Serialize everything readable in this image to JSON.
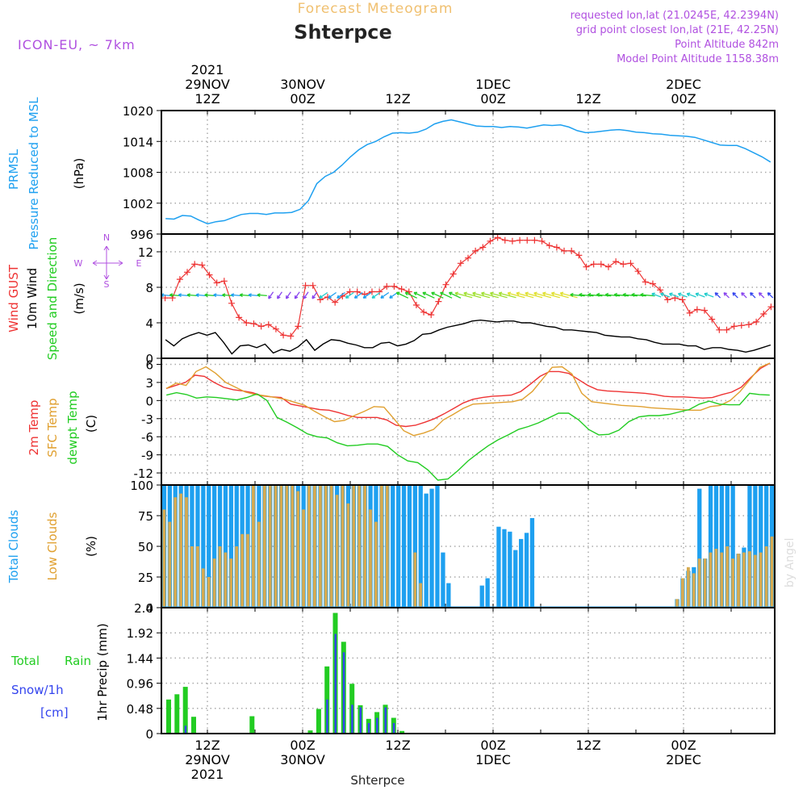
{
  "header": {
    "subtitle": "Forecast Meteogram",
    "title": "Shterpce",
    "model": "ICON-EU, ~ 7km",
    "requested": "requested lon,lat (21.0245E, 42.2394N)",
    "gridpoint": "grid point closest lon,lat (21E, 42.25N)",
    "point_alt": "Point Altitude 842m",
    "model_alt": "Model Point Altitude 1158.38m",
    "footer_name": "Shterpce",
    "credit": "by Angel"
  },
  "time_axis": {
    "top_labels": [
      {
        "hour": 12,
        "lines": [
          "2021",
          "29NOV",
          "12Z"
        ]
      },
      {
        "hour": 24,
        "lines": [
          "30NOV",
          "00Z"
        ]
      },
      {
        "hour": 36,
        "lines": [
          "12Z"
        ]
      },
      {
        "hour": 48,
        "lines": [
          "1DEC",
          "00Z"
        ]
      },
      {
        "hour": 60,
        "lines": [
          "12Z"
        ]
      },
      {
        "hour": 72,
        "lines": [
          "2DEC",
          "00Z"
        ]
      }
    ],
    "bottom_labels": [
      {
        "hour": 12,
        "lines": [
          "12Z",
          "29NOV",
          "2021"
        ]
      },
      {
        "hour": 24,
        "lines": [
          "00Z",
          "30NOV"
        ]
      },
      {
        "hour": 36,
        "lines": [
          "12Z"
        ]
      },
      {
        "hour": 48,
        "lines": [
          "00Z",
          "1DEC"
        ]
      },
      {
        "hour": 60,
        "lines": [
          "12Z"
        ]
      },
      {
        "hour": 72,
        "lines": [
          "00Z",
          "2DEC"
        ]
      }
    ]
  },
  "labels": {
    "p1": [
      "PRMSL",
      "Pressure Reduced to MSL",
      "(hPa)"
    ],
    "p2": [
      "Wind GUST",
      "10m Wind",
      "Speed and Direction",
      "(m/s)"
    ],
    "compass": {
      "n": "N",
      "s": "S",
      "w": "W",
      "e": "E"
    },
    "p3": [
      "2m Temp",
      "SFC Temp",
      "dewpt Temp",
      "(C)"
    ],
    "p4": [
      "Total Clouds",
      "Low Clouds",
      "(%)"
    ],
    "p5": [
      "Total",
      "Rain",
      "Snow/1h",
      "[cm]",
      "1hr Precip (mm)"
    ]
  },
  "colors": {
    "pressure": "#1ea0f0",
    "gust": "#ee3333",
    "wind": "#000000",
    "temp2m": "#ee3333",
    "sfc": "#e0a030",
    "dew": "#22cc22",
    "totalcloud": "#1ea0f0",
    "lowcloud": "#d6aa50",
    "rain": "#22cc22",
    "snow": "#3344ee",
    "title_orange": "#f0c070",
    "purple": "#b050e0",
    "grid": "#aaaaaa"
  },
  "chart_data": [
    {
      "type": "line",
      "name": "PRMSL",
      "ylabel": "(hPa)",
      "ylim": [
        996,
        1020
      ],
      "yticks": [
        1020,
        1014,
        1008,
        1002,
        996
      ],
      "series": [
        {
          "name": "PRMSL",
          "values": [
            999.0,
            998.9,
            999.6,
            999.5,
            998.7,
            998.0,
            998.4,
            998.6,
            999.2,
            999.8,
            1000.0,
            1000.0,
            999.8,
            1000.1,
            1000.1,
            1000.2,
            1000.8,
            1002.5,
            1005.8,
            1007.2,
            1008.0,
            1009.4,
            1011.0,
            1012.4,
            1013.4,
            1014.0,
            1014.9,
            1015.6,
            1015.7,
            1015.6,
            1015.8,
            1016.4,
            1017.4,
            1017.9,
            1018.2,
            1017.8,
            1017.4,
            1017.0,
            1016.9,
            1016.9,
            1016.7,
            1016.9,
            1016.8,
            1016.6,
            1016.9,
            1017.2,
            1017.1,
            1017.2,
            1016.8,
            1016.1,
            1015.7,
            1015.8,
            1016.0,
            1016.2,
            1016.3,
            1016.1,
            1015.8,
            1015.7,
            1015.5,
            1015.4,
            1015.2,
            1015.1,
            1015.0,
            1014.8,
            1014.3,
            1013.8,
            1013.3,
            1013.2,
            1013.2,
            1012.6,
            1011.8,
            1011.0,
            1010.0
          ]
        }
      ]
    },
    {
      "type": "line",
      "name": "Wind",
      "ylabel": "(m/s)",
      "ylim": [
        0,
        14
      ],
      "yticks": [
        12,
        8,
        4,
        0
      ],
      "series": [
        {
          "name": "Wind GUST",
          "values": [
            6.8,
            6.8,
            8.9,
            9.7,
            10.6,
            10.5,
            9.4,
            8.5,
            8.7,
            6.2,
            4.6,
            4.0,
            3.9,
            3.6,
            3.8,
            3.3,
            2.6,
            2.5,
            3.6,
            8.2,
            8.2,
            6.6,
            6.9,
            6.3,
            7.0,
            7.5,
            7.5,
            7.2,
            7.5,
            7.5,
            8.1,
            8.1,
            7.8,
            7.5,
            6.0,
            5.2,
            4.9,
            6.4,
            8.3,
            9.5,
            10.7,
            11.3,
            12.1,
            12.5,
            13.2,
            13.6,
            13.3,
            13.2,
            13.3,
            13.3,
            13.3,
            13.2,
            12.7,
            12.5,
            12.1,
            12.1,
            11.6,
            10.3,
            10.6,
            10.6,
            10.3,
            10.9,
            10.6,
            10.7,
            9.8,
            8.6,
            8.4,
            7.7,
            6.6,
            6.8,
            6.6,
            5.1,
            5.5,
            5.4,
            4.4,
            3.2,
            3.2,
            3.6,
            3.7,
            3.8,
            4.1,
            5.0,
            5.8
          ]
        },
        {
          "name": "10m Wind",
          "values": [
            2.1,
            1.4,
            2.2,
            2.6,
            2.9,
            2.6,
            2.9,
            1.8,
            0.5,
            1.4,
            1.5,
            1.2,
            1.6,
            0.6,
            1.0,
            0.8,
            1.3,
            2.1,
            0.9,
            1.6,
            2.1,
            2.0,
            1.7,
            1.5,
            1.2,
            1.2,
            1.7,
            1.8,
            1.4,
            1.6,
            2.0,
            2.7,
            2.8,
            3.2,
            3.5,
            3.7,
            3.9,
            4.2,
            4.3,
            4.2,
            4.1,
            4.2,
            4.2,
            4.0,
            4.0,
            3.8,
            3.6,
            3.5,
            3.2,
            3.2,
            3.1,
            3.0,
            2.9,
            2.6,
            2.5,
            2.4,
            2.4,
            2.2,
            2.1,
            1.8,
            1.6,
            1.6,
            1.6,
            1.4,
            1.4,
            1.0,
            1.2,
            1.2,
            1.0,
            0.9,
            0.7,
            0.9,
            1.2,
            1.5
          ]
        }
      ]
    },
    {
      "type": "line",
      "name": "Temperature",
      "ylabel": "(C)",
      "ylim": [
        -14,
        7
      ],
      "yticks": [
        6,
        3,
        0,
        -3,
        -6,
        -9,
        -12
      ],
      "series": [
        {
          "name": "2m Temp",
          "values": [
            2.0,
            2.5,
            3.0,
            4.2,
            4.0,
            3.0,
            2.2,
            1.8,
            1.6,
            1.3,
            0.8,
            0.6,
            0.5,
            -0.6,
            -0.9,
            -1.2,
            -1.5,
            -1.6,
            -2.0,
            -2.5,
            -2.8,
            -2.8,
            -2.8,
            -3.2,
            -4.1,
            -4.3,
            -4.1,
            -3.6,
            -3.0,
            -2.2,
            -1.3,
            -0.4,
            0.2,
            0.5,
            0.7,
            0.8,
            0.9,
            1.5,
            2.7,
            4.0,
            4.8,
            4.8,
            4.5,
            3.5,
            2.5,
            1.8,
            1.6,
            1.5,
            1.4,
            1.3,
            1.2,
            1.0,
            0.7,
            0.6,
            0.6,
            0.5,
            0.4,
            0.5,
            1.0,
            1.4,
            2.2,
            3.8,
            5.3,
            6.2
          ]
        },
        {
          "name": "SFC Temp",
          "values": [
            2.0,
            2.9,
            2.5,
            4.8,
            5.6,
            4.5,
            3.0,
            2.2,
            1.4,
            1.0,
            0.8,
            0.5,
            0.2,
            -0.3,
            -0.8,
            -1.8,
            -2.7,
            -3.5,
            -3.3,
            -2.5,
            -1.8,
            -1.0,
            -1.1,
            -3.0,
            -5.0,
            -5.8,
            -5.4,
            -4.8,
            -3.2,
            -2.3,
            -1.3,
            -0.6,
            -0.5,
            -0.4,
            -0.3,
            -0.2,
            0.2,
            1.5,
            3.5,
            5.5,
            5.6,
            4.4,
            1.2,
            -0.2,
            -0.4,
            -0.6,
            -0.8,
            -0.9,
            -1.0,
            -1.2,
            -1.3,
            -1.4,
            -1.5,
            -1.6,
            -1.6,
            -1.0,
            -0.8,
            0.0,
            1.5,
            3.5,
            5.5,
            6.2
          ]
        },
        {
          "name": "dewpt Temp",
          "values": [
            0.9,
            1.3,
            1.0,
            0.4,
            0.6,
            0.5,
            0.3,
            0.1,
            0.5,
            1.1,
            0.0,
            -2.8,
            -3.6,
            -4.5,
            -5.5,
            -6.0,
            -6.2,
            -7.0,
            -7.5,
            -7.4,
            -7.2,
            -7.2,
            -7.6,
            -9.0,
            -10.0,
            -10.3,
            -11.5,
            -13.2,
            -13.0,
            -11.6,
            -10.0,
            -8.7,
            -7.5,
            -6.5,
            -5.7,
            -4.8,
            -4.3,
            -3.7,
            -2.9,
            -2.1,
            -2.1,
            -3.2,
            -4.8,
            -5.7,
            -5.6,
            -4.9,
            -3.5,
            -2.7,
            -2.5,
            -2.5,
            -2.3,
            -1.9,
            -1.5,
            -0.6,
            -0.1,
            -0.6,
            -0.7,
            -0.7,
            1.2,
            1.0,
            0.9
          ]
        }
      ]
    },
    {
      "type": "bar",
      "name": "Clouds",
      "ylabel": "(%)",
      "ylim": [
        0,
        100
      ],
      "yticks": [
        100,
        75,
        50,
        25,
        0
      ],
      "series": [
        {
          "name": "Total Clouds",
          "values": [
            100,
            100,
            100,
            100,
            100,
            100,
            100,
            100,
            100,
            100,
            100,
            100,
            100,
            100,
            100,
            100,
            100,
            100,
            100,
            100,
            100,
            100,
            100,
            100,
            100,
            100,
            100,
            100,
            100,
            100,
            100,
            100,
            100,
            100,
            100,
            100,
            100,
            100,
            100,
            100,
            100,
            100,
            100,
            100,
            100,
            100,
            100,
            93,
            97,
            100,
            45,
            20,
            0,
            0,
            0,
            0,
            0,
            18,
            24,
            0,
            66,
            64,
            62,
            47,
            56,
            61,
            73,
            0,
            0,
            0,
            0,
            0,
            0,
            0,
            0,
            0,
            0,
            0,
            0,
            0,
            0,
            0,
            0,
            0,
            0,
            0,
            0,
            0,
            0,
            0,
            0,
            0,
            7,
            24,
            30,
            33,
            97,
            40,
            100,
            100,
            100,
            100,
            100,
            44,
            49,
            100,
            100,
            100,
            100,
            100
          ]
        },
        {
          "name": "Low Clouds",
          "values": [
            80,
            70,
            90,
            93,
            90,
            50,
            50,
            32,
            25,
            40,
            50,
            45,
            40,
            50,
            60,
            60,
            100,
            70,
            100,
            100,
            100,
            100,
            100,
            100,
            95,
            80,
            100,
            100,
            100,
            100,
            100,
            92,
            100,
            85,
            100,
            100,
            100,
            80,
            70,
            100,
            100,
            0,
            0,
            0,
            0,
            45,
            20,
            0,
            0,
            0,
            0,
            0,
            0,
            0,
            0,
            0,
            0,
            0,
            0,
            0,
            0,
            0,
            0,
            0,
            0,
            0,
            0,
            0,
            0,
            0,
            0,
            0,
            0,
            0,
            0,
            0,
            0,
            0,
            0,
            0,
            0,
            0,
            0,
            0,
            0,
            0,
            0,
            0,
            0,
            0,
            0,
            0,
            7,
            24,
            33,
            28,
            40,
            40,
            45,
            48,
            45,
            50,
            40,
            44,
            45,
            46,
            43,
            45,
            50,
            58
          ]
        }
      ]
    },
    {
      "type": "bar",
      "name": "Precipitation",
      "ylabel": "1hr Precip (mm)",
      "ylim": [
        0,
        2.4
      ],
      "yticks": [
        2.4,
        1.92,
        1.44,
        0.96,
        0.48,
        0
      ],
      "series": [
        {
          "name": "Total Rain",
          "values": [
            0.65,
            0.75,
            0.89,
            0.32,
            0,
            0,
            0,
            0,
            0,
            0,
            0.33,
            0,
            0,
            0,
            0,
            0,
            0,
            0.06,
            0.47,
            1.28,
            2.3,
            1.75,
            0.95,
            0.54,
            0.28,
            0.41,
            0.55,
            0.3,
            0.05,
            0,
            0,
            0,
            0,
            0,
            0,
            0,
            0,
            0,
            0,
            0,
            0,
            0,
            0,
            0,
            0,
            0,
            0,
            0,
            0,
            0,
            0,
            0,
            0,
            0,
            0,
            0,
            0,
            0,
            0,
            0,
            0,
            0,
            0,
            0,
            0,
            0,
            0,
            0,
            0,
            0,
            0,
            0,
            0,
            0,
            0,
            0,
            0,
            0,
            0,
            0
          ]
        },
        {
          "name": "Snow/1h",
          "values": [
            0,
            0,
            0.15,
            0,
            0,
            0,
            0,
            0,
            0,
            0,
            0,
            0,
            0,
            0,
            0,
            0,
            0,
            0,
            0,
            0.65,
            1.9,
            1.55,
            0.55,
            0.5,
            0.2,
            0.3,
            0.5,
            0.2,
            0,
            0,
            0,
            0,
            0,
            0,
            0,
            0,
            0,
            0,
            0,
            0,
            0,
            0,
            0,
            0,
            0,
            0,
            0,
            0,
            0,
            0,
            0,
            0,
            0,
            0,
            0,
            0,
            0,
            0,
            0,
            0,
            0,
            0,
            0,
            0,
            0,
            0,
            0,
            0,
            0,
            0,
            0,
            0,
            0,
            0,
            0,
            0,
            0,
            0,
            0,
            0
          ]
        }
      ]
    }
  ]
}
